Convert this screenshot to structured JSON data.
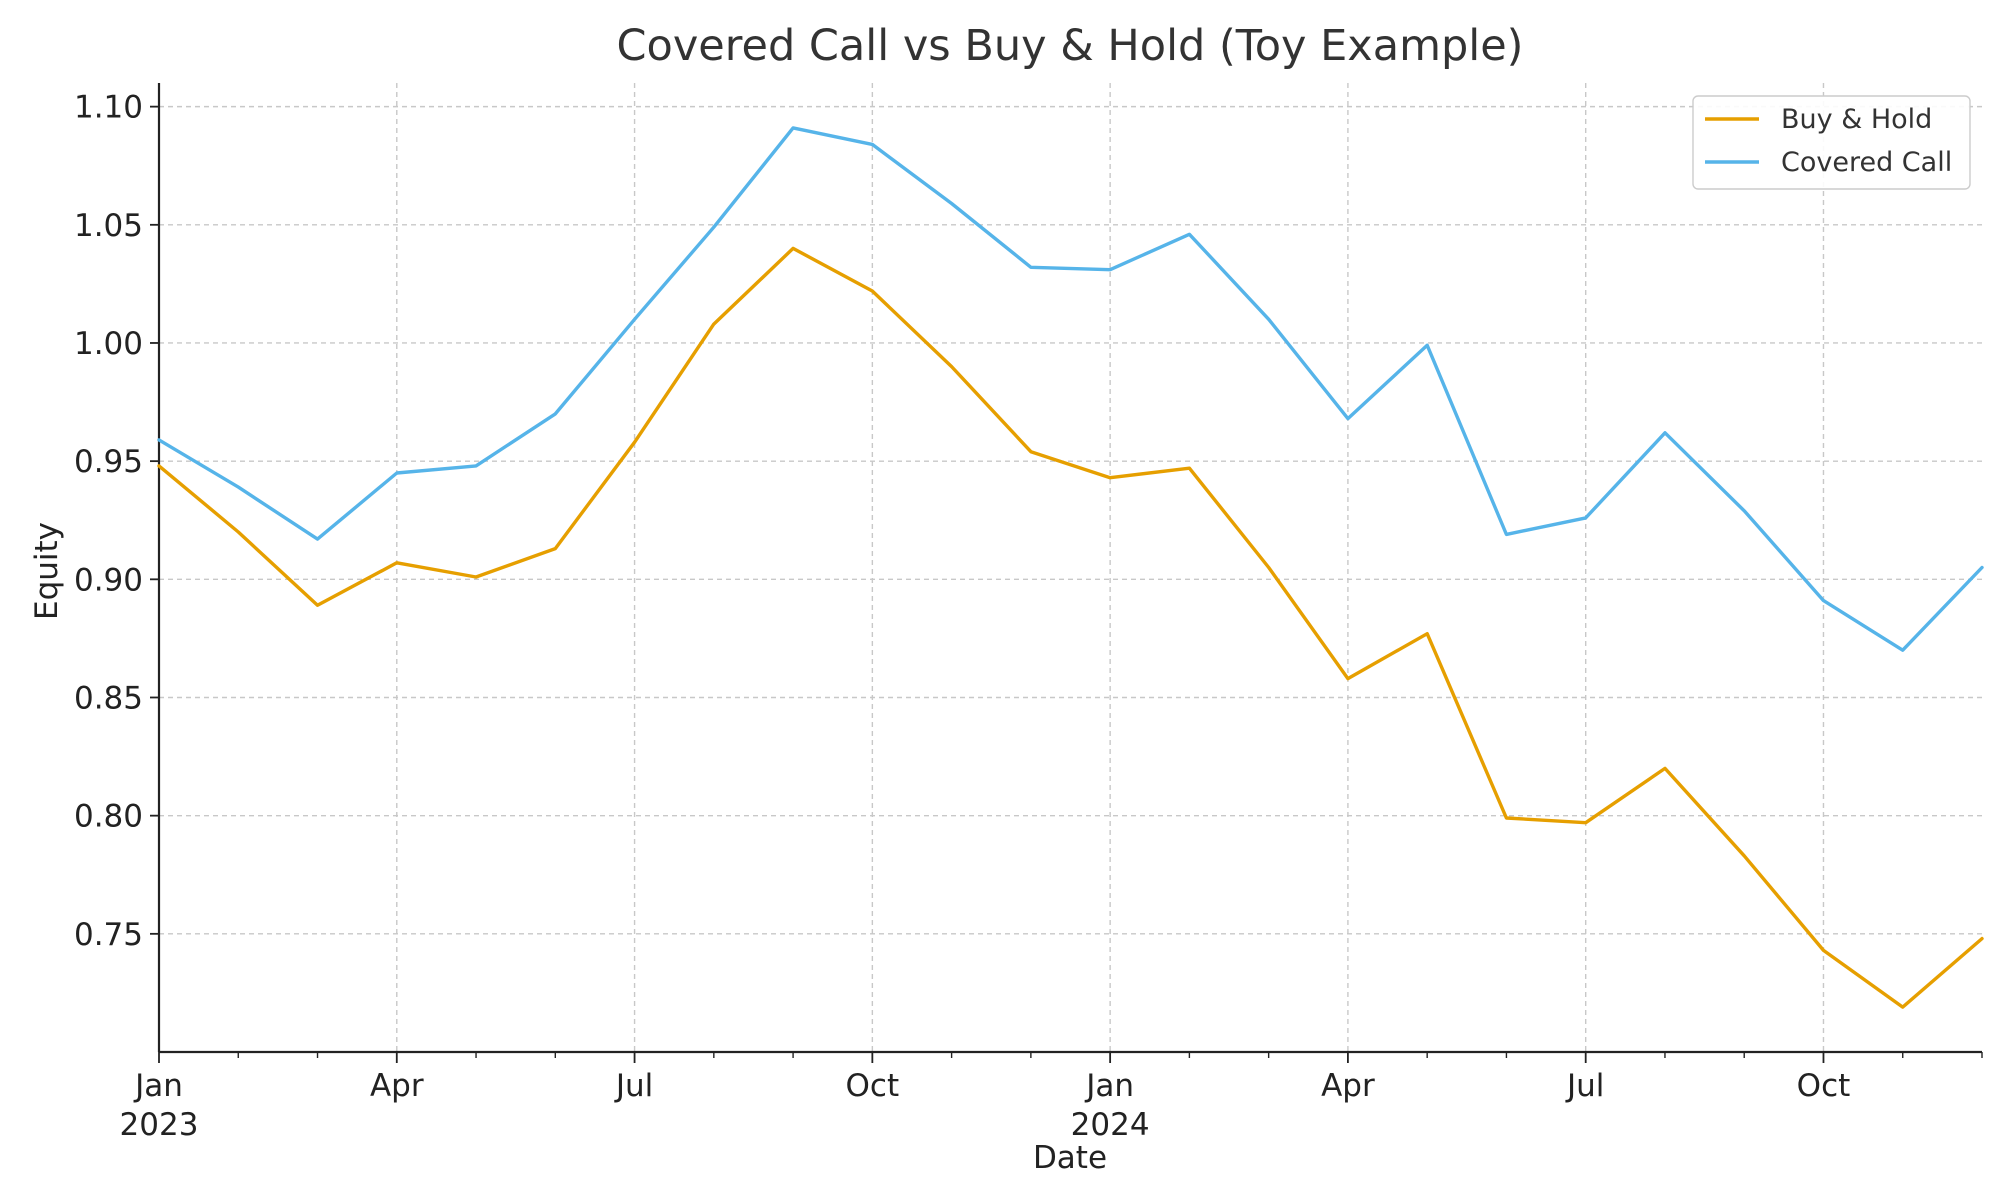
{
  "chart_data": {
    "type": "line",
    "title": "Covered Call vs Buy & Hold (Toy Example)",
    "xlabel": "Date",
    "ylabel": "Equity",
    "x": [
      "2023-01-01",
      "2023-02-01",
      "2023-03-01",
      "2023-04-01",
      "2023-05-01",
      "2023-06-01",
      "2023-07-01",
      "2023-08-01",
      "2023-09-01",
      "2023-10-01",
      "2023-11-01",
      "2023-12-01",
      "2024-01-01",
      "2024-02-01",
      "2024-03-01",
      "2024-04-01",
      "2024-05-01",
      "2024-06-01",
      "2024-07-01",
      "2024-08-01",
      "2024-09-01",
      "2024-10-01",
      "2024-11-01",
      "2024-12-01"
    ],
    "xlim": [
      "2023-01-01",
      "2024-12-01"
    ],
    "ylim": [
      0.7,
      1.11
    ],
    "yticks": [
      0.75,
      0.8,
      0.85,
      0.9,
      0.95,
      1.0,
      1.05,
      1.1
    ],
    "ytick_labels": [
      "0.75",
      "0.80",
      "0.85",
      "0.90",
      "0.95",
      "1.00",
      "1.05",
      "1.10"
    ],
    "xticks": [
      {
        "date": "2023-01-01",
        "label": "Jan",
        "year": "2023"
      },
      {
        "date": "2023-04-01",
        "label": "Apr",
        "year": ""
      },
      {
        "date": "2023-07-01",
        "label": "Jul",
        "year": ""
      },
      {
        "date": "2023-10-01",
        "label": "Oct",
        "year": ""
      },
      {
        "date": "2024-01-01",
        "label": "Jan",
        "year": "2024"
      },
      {
        "date": "2024-04-01",
        "label": "Apr",
        "year": ""
      },
      {
        "date": "2024-07-01",
        "label": "Jul",
        "year": ""
      },
      {
        "date": "2024-10-01",
        "label": "Oct",
        "year": ""
      }
    ],
    "minor_xticks": [
      "2023-02-01",
      "2023-03-01",
      "2023-05-01",
      "2023-06-01",
      "2023-08-01",
      "2023-09-01",
      "2023-11-01",
      "2023-12-01",
      "2024-02-01",
      "2024-03-01",
      "2024-05-01",
      "2024-06-01",
      "2024-08-01",
      "2024-09-01",
      "2024-11-01",
      "2024-12-01"
    ],
    "grid": true,
    "legend_position": "top-right",
    "series": [
      {
        "name": "Buy & Hold",
        "color": "#E69F00",
        "values": [
          0.948,
          0.92,
          0.889,
          0.907,
          0.901,
          0.913,
          0.958,
          1.008,
          1.04,
          1.022,
          0.99,
          0.954,
          0.943,
          0.947,
          0.905,
          0.858,
          0.877,
          0.799,
          0.797,
          0.82,
          0.783,
          0.743,
          0.719,
          0.748
        ]
      },
      {
        "name": "Covered Call",
        "color": "#56B4E9",
        "values": [
          0.959,
          0.939,
          0.917,
          0.945,
          0.948,
          0.97,
          1.01,
          1.049,
          1.091,
          1.084,
          1.059,
          1.032,
          1.031,
          1.046,
          1.01,
          0.968,
          0.999,
          0.919,
          0.926,
          0.962,
          0.929,
          0.891,
          0.87,
          0.905
        ]
      }
    ]
  }
}
